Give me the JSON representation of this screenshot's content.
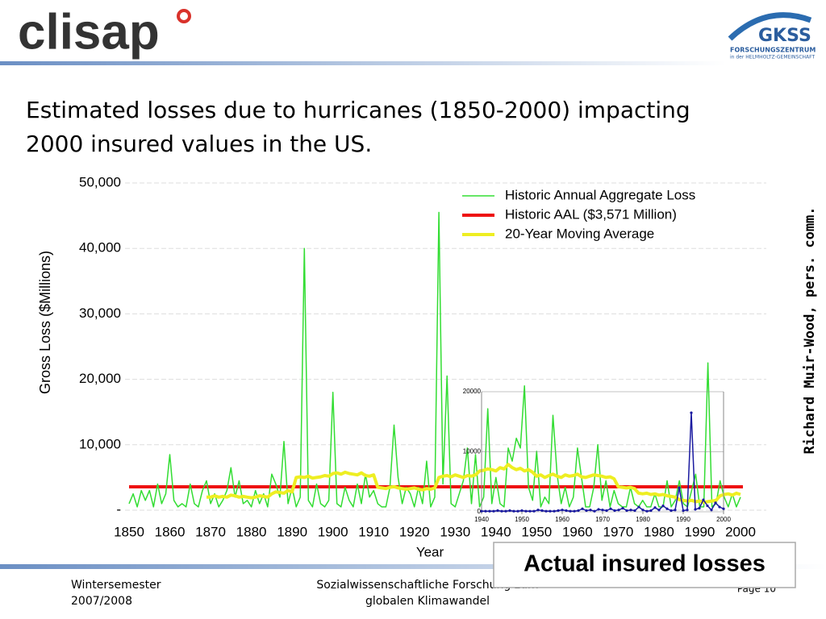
{
  "header": {
    "logo": "clisap",
    "partner": "GKSS",
    "partner_line1": "FORSCHUNGSZENTRUM",
    "partner_line2": "in der HELMHOLTZ-GEMEINSCHAFT"
  },
  "title": [
    "Estimated losses due to hurricanes (1850-2000) impacting",
    "2000 insured values in the US."
  ],
  "source": "Richard Muir-Wood, pers. comm.",
  "footer": {
    "left": [
      "Wintersemester",
      "2007/2008"
    ],
    "center": [
      "Sozialwissenschaftliche Forschung zum",
      "globalen Klimawandel"
    ],
    "page": "Page 10"
  },
  "chart_data": [
    {
      "type": "line",
      "xlabel": "Year",
      "ylabel": "Gross Loss ($Millions)",
      "xlim": [
        1850,
        2000
      ],
      "ylim": [
        0,
        50000
      ],
      "xticks": [
        1850,
        1860,
        1870,
        1880,
        1890,
        1900,
        1910,
        1920,
        1930,
        1940,
        1950,
        1960,
        1970,
        1980,
        1990,
        2000
      ],
      "yticks": [
        {
          "value": 0,
          "label": "-"
        },
        {
          "value": 10000,
          "label": "10,000"
        },
        {
          "value": 20000,
          "label": "20,000"
        },
        {
          "value": 30000,
          "label": "30,000"
        },
        {
          "value": 40000,
          "label": "40,000"
        },
        {
          "value": 50000,
          "label": "50,000"
        }
      ],
      "grid": true,
      "legend": "top-right",
      "x": [
        1850,
        1851,
        1852,
        1853,
        1854,
        1855,
        1856,
        1857,
        1858,
        1859,
        1860,
        1861,
        1862,
        1863,
        1864,
        1865,
        1866,
        1867,
        1868,
        1869,
        1870,
        1871,
        1872,
        1873,
        1874,
        1875,
        1876,
        1877,
        1878,
        1879,
        1880,
        1881,
        1882,
        1883,
        1884,
        1885,
        1886,
        1887,
        1888,
        1889,
        1890,
        1891,
        1892,
        1893,
        1894,
        1895,
        1896,
        1897,
        1898,
        1899,
        1900,
        1901,
        1902,
        1903,
        1904,
        1905,
        1906,
        1907,
        1908,
        1909,
        1910,
        1911,
        1912,
        1913,
        1914,
        1915,
        1916,
        1917,
        1918,
        1919,
        1920,
        1921,
        1922,
        1923,
        1924,
        1925,
        1926,
        1927,
        1928,
        1929,
        1930,
        1931,
        1932,
        1933,
        1934,
        1935,
        1936,
        1937,
        1938,
        1939,
        1940,
        1941,
        1942,
        1943,
        1944,
        1945,
        1946,
        1947,
        1948,
        1949,
        1950,
        1951,
        1952,
        1953,
        1954,
        1955,
        1956,
        1957,
        1958,
        1959,
        1960,
        1961,
        1962,
        1963,
        1964,
        1965,
        1966,
        1967,
        1968,
        1969,
        1970,
        1971,
        1972,
        1973,
        1974,
        1975,
        1976,
        1977,
        1978,
        1979,
        1980,
        1981,
        1982,
        1983,
        1984,
        1985,
        1986,
        1987,
        1988,
        1989,
        1990,
        1991,
        1992,
        1993,
        1994,
        1995,
        1996,
        1997,
        1998,
        1999,
        2000
      ],
      "series": [
        {
          "name": "Historic Annual Aggregate Loss",
          "color": "#33dd33",
          "width": 1.5,
          "values": [
            1000,
            2500,
            500,
            3000,
            1500,
            3000,
            500,
            4000,
            1000,
            2500,
            8500,
            1500,
            500,
            1000,
            500,
            4000,
            1000,
            500,
            3000,
            4500,
            1000,
            2500,
            500,
            1500,
            3000,
            6500,
            2000,
            4500,
            1000,
            1500,
            500,
            3000,
            1000,
            2500,
            500,
            5500,
            4000,
            2000,
            10500,
            1000,
            3500,
            500,
            2000,
            40000,
            1500,
            500,
            4000,
            1000,
            500,
            1500,
            18000,
            1000,
            500,
            3500,
            1500,
            500,
            4000,
            1000,
            5500,
            2000,
            3000,
            1000,
            500,
            500,
            3500,
            13000,
            5000,
            1000,
            3500,
            2500,
            500,
            3500,
            1000,
            7500,
            500,
            2000,
            45500,
            4000,
            20500,
            1000,
            500,
            2500,
            4500,
            9500,
            1000,
            8500,
            500,
            2000,
            15500,
            1000,
            5000,
            1000,
            500,
            9500,
            7500,
            11000,
            9500,
            19000,
            3500,
            1500,
            9000,
            500,
            2000,
            1000,
            14500,
            5500,
            1000,
            3500,
            500,
            2000,
            9500,
            5000,
            500,
            500,
            3500,
            10000,
            1500,
            4500,
            500,
            3000,
            1000,
            500,
            500,
            3500,
            1000,
            500,
            1500,
            500,
            500,
            2500,
            500,
            500,
            4500,
            500,
            1500,
            4500,
            1000,
            500,
            3000,
            5500,
            500,
            500,
            22500,
            500,
            1000,
            4500,
            2000,
            500,
            2500,
            500,
            2000
          ]
        },
        {
          "name": "20-Year Moving Average",
          "color": "#eeee22",
          "width": 4,
          "values": [
            null,
            null,
            null,
            null,
            null,
            null,
            null,
            null,
            null,
            null,
            null,
            null,
            null,
            null,
            null,
            null,
            null,
            null,
            null,
            2000,
            2000,
            2200,
            2000,
            2100,
            2000,
            2300,
            2200,
            2000,
            2100,
            2000,
            1900,
            2000,
            2200,
            2100,
            2000,
            2500,
            2800,
            2700,
            2600,
            3000,
            2800,
            5000,
            5100,
            5000,
            5200,
            4900,
            5000,
            5100,
            5300,
            5200,
            5600,
            5700,
            5500,
            5800,
            5600,
            5500,
            5400,
            5700,
            5300,
            5200,
            5400,
            3500,
            3400,
            3300,
            3500,
            3600,
            3400,
            3300,
            3200,
            3300,
            3400,
            3200,
            3100,
            3300,
            3200,
            3400,
            5000,
            5200,
            5300,
            5100,
            5400,
            5200,
            5000,
            5300,
            5200,
            5400,
            6000,
            6100,
            6300,
            6200,
            6000,
            6500,
            6300,
            7000,
            6500,
            6200,
            6400,
            6000,
            6200,
            5800,
            5200,
            5400,
            5000,
            5300,
            5500,
            5200,
            5000,
            5400,
            5200,
            5300,
            5500,
            5100,
            5000,
            5200,
            5400,
            5300,
            5200,
            5000,
            5100,
            4800,
            3600,
            3500,
            3400,
            3500,
            3300,
            2600,
            2500,
            2600,
            2400,
            2500,
            2300,
            2400,
            2200,
            2100,
            2000,
            1600,
            1500,
            1400,
            1500,
            1300,
            1400,
            1200,
            1300,
            1400,
            1500,
            2200,
            2400,
            2500,
            2300,
            2600,
            2400
          ]
        }
      ],
      "hline": {
        "name": "Historic AAL ($3,571 Million)",
        "value": 3571,
        "color": "#ee1111"
      }
    },
    {
      "type": "line",
      "title": "Actual insured losses",
      "xlim": [
        1940,
        2000
      ],
      "ylim": [
        0,
        20000
      ],
      "xticks": [
        1940,
        1950,
        1960,
        1970,
        1980,
        1990,
        2000
      ],
      "yticks": [
        0,
        10000,
        20000
      ],
      "grid": true,
      "x": [
        1940,
        1941,
        1942,
        1943,
        1944,
        1945,
        1946,
        1947,
        1948,
        1949,
        1950,
        1951,
        1952,
        1953,
        1954,
        1955,
        1956,
        1957,
        1958,
        1959,
        1960,
        1961,
        1962,
        1963,
        1964,
        1965,
        1966,
        1967,
        1968,
        1969,
        1970,
        1971,
        1972,
        1973,
        1974,
        1975,
        1976,
        1977,
        1978,
        1979,
        1980,
        1981,
        1982,
        1983,
        1984,
        1985,
        1986,
        1987,
        1988,
        1989,
        1990,
        1991,
        1992,
        1993,
        1994,
        1995,
        1996,
        1997,
        1998,
        1999,
        2000
      ],
      "series": [
        {
          "color": "#1a1aa0",
          "width": 1.5,
          "values": [
            100,
            100,
            100,
            100,
            200,
            100,
            100,
            200,
            100,
            100,
            200,
            100,
            100,
            100,
            300,
            200,
            100,
            100,
            100,
            200,
            300,
            200,
            100,
            100,
            200,
            500,
            200,
            300,
            100,
            400,
            300,
            200,
            500,
            200,
            300,
            600,
            200,
            300,
            200,
            800,
            300,
            100,
            200,
            700,
            300,
            1000,
            500,
            200,
            300,
            4000,
            200,
            300,
            16500,
            400,
            600,
            2000,
            1000,
            300,
            1500,
            800,
            500
          ]
        }
      ]
    }
  ]
}
